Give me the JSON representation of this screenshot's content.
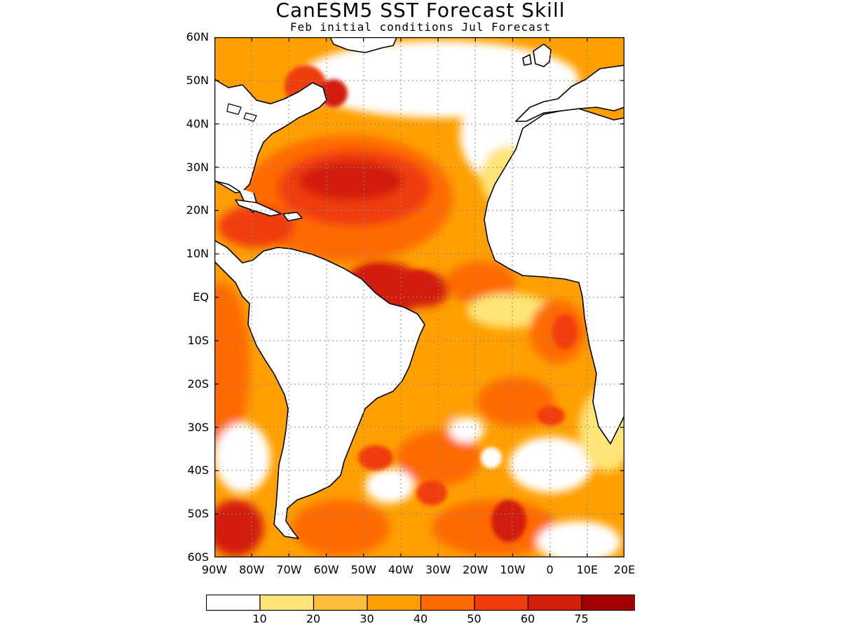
{
  "title": "CanESM5 SST Forecast Skill",
  "subtitle": "Feb initial conditions  Jul Forecast",
  "lat_labels": [
    "60N",
    "50N",
    "40N",
    "30N",
    "20N",
    "10N",
    "EQ",
    "10S",
    "20S",
    "30S",
    "40S",
    "50S",
    "60S"
  ],
  "lon_labels": [
    "90W",
    "80W",
    "70W",
    "60W",
    "50W",
    "40W",
    "30W",
    "20W",
    "10W",
    "0",
    "10E",
    "20E"
  ],
  "colorbar": {
    "levels": [
      "10",
      "20",
      "30",
      "40",
      "50",
      "60",
      "75"
    ],
    "colors": [
      "#ffffff",
      "#ffe476",
      "#ffbe3c",
      "#ff9f00",
      "#ff6a00",
      "#f03c0a",
      "#d21e0a",
      "#a00000"
    ]
  },
  "map": {
    "variable": "SST forecast skill",
    "lon_range": [
      "90W",
      "20E"
    ],
    "lat_range": [
      "60S",
      "60N"
    ],
    "land_color": "#ffffff",
    "coastline_color": "#000000",
    "gridlines": "dotted"
  }
}
